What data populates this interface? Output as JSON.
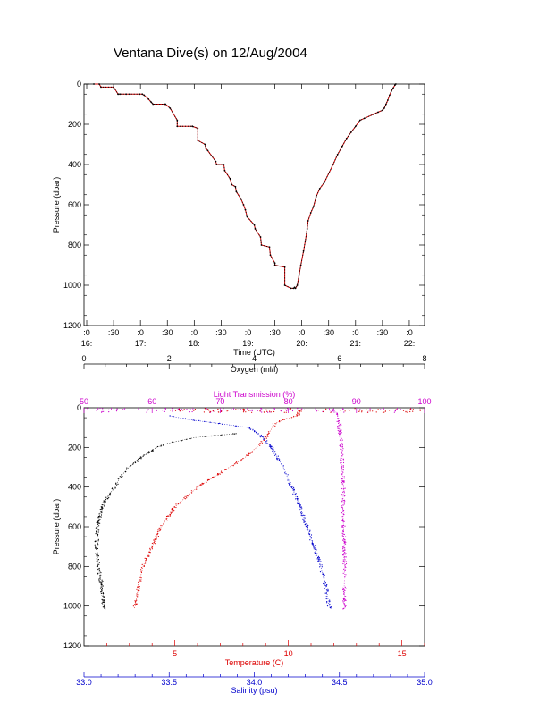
{
  "page_title": "Ventana Dive(s) on 12/Aug/2004",
  "chart_data": [
    {
      "type": "line",
      "title": "Ventana Dive(s) on 12/Aug/2004",
      "xlabel": "Time (UTC)",
      "ylabel": "Pressure (dbar)",
      "xlim": [
        "15:57",
        "22:17"
      ],
      "ylim": [
        1200,
        0
      ],
      "y_ticks": [
        0,
        200,
        400,
        600,
        800,
        1000,
        1200
      ],
      "x_ticks": [
        {
          "time": "16:00",
          "top": ":0",
          "bottom": "16:"
        },
        {
          "time": "16:30",
          "top": ":30",
          "bottom": ""
        },
        {
          "time": "17:00",
          "top": ":0",
          "bottom": "17:"
        },
        {
          "time": "17:30",
          "top": ":30",
          "bottom": ""
        },
        {
          "time": "18:00",
          "top": ":0",
          "bottom": "18:"
        },
        {
          "time": "18:30",
          "top": ":30",
          "bottom": ""
        },
        {
          "time": "19:00",
          "top": ":0",
          "bottom": "19:"
        },
        {
          "time": "19:30",
          "top": ":30",
          "bottom": ""
        },
        {
          "time": "20:00",
          "top": ":0",
          "bottom": "20:"
        },
        {
          "time": "20:30",
          "top": ":30",
          "bottom": ""
        },
        {
          "time": "21:00",
          "top": ":0",
          "bottom": "21:"
        },
        {
          "time": "21:30",
          "top": ":30",
          "bottom": ""
        },
        {
          "time": "22:00",
          "top": ":0",
          "bottom": "22:"
        }
      ],
      "series": [
        {
          "color": "#cc0000",
          "x": [
            "16:08",
            "16:14",
            "16:16",
            "16:30",
            "16:35",
            "16:35",
            "16:37",
            "16:44",
            "16:48",
            "16:59",
            "17:02",
            "17:04",
            "17:09",
            "17:12",
            "17:14",
            "17:27",
            "17:28",
            "17:33",
            "17:41",
            "17:41",
            "17:58",
            "17:58",
            "18:04",
            "18:04",
            "18:12",
            "18:13",
            "18:15",
            "18:24",
            "18:25",
            "18:33",
            "18:34",
            "18:40",
            "18:42",
            "18:46",
            "18:47",
            "18:52",
            "18:55",
            "18:57",
            "18:59",
            "19:07",
            "19:08",
            "19:14",
            "19:15",
            "19:24",
            "19:25",
            "19:30",
            "19:30",
            "19:41",
            "19:41",
            "19:48",
            "19:51",
            "19:52",
            "19:53",
            "19:55",
            "19:57",
            "19:59",
            "20:02",
            "20:04",
            "20:06",
            "20:07",
            "20:10",
            "20:13",
            "20:16",
            "20:20",
            "20:25",
            "20:35",
            "20:40",
            "20:45",
            "20:50",
            "20:55",
            "21:00",
            "21:05",
            "21:10",
            "21:20",
            "21:25",
            "21:30",
            "21:32",
            "21:34",
            "21:36",
            "21:38",
            "21:40",
            "21:42",
            "21:44",
            "21:45"
          ],
          "y": [
            0,
            0,
            15,
            15,
            50,
            50,
            50,
            50,
            50,
            50,
            50,
            55,
            75,
            90,
            100,
            100,
            100,
            120,
            180,
            210,
            210,
            210,
            220,
            280,
            300,
            320,
            330,
            385,
            400,
            400,
            430,
            470,
            500,
            510,
            535,
            570,
            600,
            625,
            660,
            700,
            720,
            760,
            800,
            810,
            850,
            890,
            900,
            910,
            1000,
            1015,
            1015,
            1010,
            1015,
            1000,
            950,
            900,
            830,
            780,
            720,
            680,
            640,
            610,
            560,
            520,
            490,
            400,
            350,
            310,
            270,
            240,
            210,
            180,
            170,
            150,
            140,
            130,
            120,
            100,
            80,
            55,
            35,
            20,
            5,
            0
          ]
        }
      ]
    },
    {
      "type": "line",
      "ylabel": "Pressure (dbar)",
      "ylim": [
        1200,
        0
      ],
      "y_ticks": [
        0,
        200,
        400,
        600,
        800,
        1000,
        1200
      ],
      "axes": {
        "oxygen": {
          "label": "Oxygen (ml/l)",
          "color": "#000000",
          "position": "top",
          "range": [
            0,
            8
          ],
          "ticks": [
            0,
            2,
            4,
            6,
            8
          ]
        },
        "light_transmission": {
          "label": "Light Transmission (%)",
          "color": "#cc00cc",
          "position": "top",
          "range": [
            50,
            100
          ],
          "ticks": [
            50,
            60,
            70,
            80,
            90,
            100
          ]
        },
        "temperature": {
          "label": "Temperature (C)",
          "color": "#dd0000",
          "position": "bottom",
          "range": [
            1.0,
            16.0
          ],
          "ticks": [
            5,
            10,
            15
          ]
        },
        "salinity": {
          "label": "Salinity (psu)",
          "color": "#0000cc",
          "position": "bottom",
          "range": [
            33.0,
            35.0
          ],
          "ticks": [
            "33.0",
            "33.5",
            "34.0",
            "34.5",
            "35.0"
          ]
        }
      },
      "series": [
        {
          "axis": "oxygen",
          "color": "#000000",
          "pressure": [
            130,
            150,
            180,
            200,
            250,
            300,
            350,
            400,
            450,
            500,
            550,
            600,
            650,
            700,
            800,
            900,
            1000,
            1015
          ],
          "values": [
            3.58,
            2.6,
            1.95,
            1.7,
            1.35,
            1.05,
            0.85,
            0.72,
            0.55,
            0.42,
            0.36,
            0.32,
            0.3,
            0.3,
            0.33,
            0.42,
            0.47,
            0.47
          ]
        },
        {
          "axis": "light_transmission",
          "color": "#cc00cc",
          "pressure": [
            5,
            30,
            60,
            80,
            100,
            150,
            200,
            300,
            400,
            500,
            600,
            700,
            800,
            900,
            1000,
            1015
          ],
          "values": [
            86.5,
            87.2,
            87.3,
            87.5,
            87.5,
            87.7,
            87.8,
            87.9,
            88.1,
            88.0,
            88.1,
            88.2,
            88.3,
            88.2,
            88.3,
            88.3
          ],
          "surface_spread": {
            "min": 50,
            "max": 97
          }
        },
        {
          "axis": "temperature",
          "color": "#dd0000",
          "pressure": [
            15,
            40,
            60,
            80,
            100,
            150,
            200,
            250,
            300,
            400,
            500,
            600,
            700,
            800,
            900,
            1000,
            1015
          ],
          "values": [
            10.5,
            10.4,
            9.8,
            9.4,
            9.3,
            9.0,
            8.6,
            8.1,
            7.4,
            6.0,
            5.0,
            4.4,
            4.0,
            3.6,
            3.4,
            3.25,
            3.2
          ],
          "surface_spread": {
            "min": 4.6,
            "max": 16.0
          }
        },
        {
          "axis": "salinity",
          "color": "#0000cc",
          "pressure": [
            40,
            60,
            80,
            100,
            150,
            200,
            300,
            400,
            500,
            600,
            700,
            800,
            900,
            1000,
            1015
          ],
          "values": [
            33.5,
            33.62,
            33.8,
            33.97,
            34.05,
            34.1,
            34.17,
            34.22,
            34.27,
            34.31,
            34.35,
            34.39,
            34.42,
            34.44,
            34.45
          ]
        }
      ]
    }
  ]
}
